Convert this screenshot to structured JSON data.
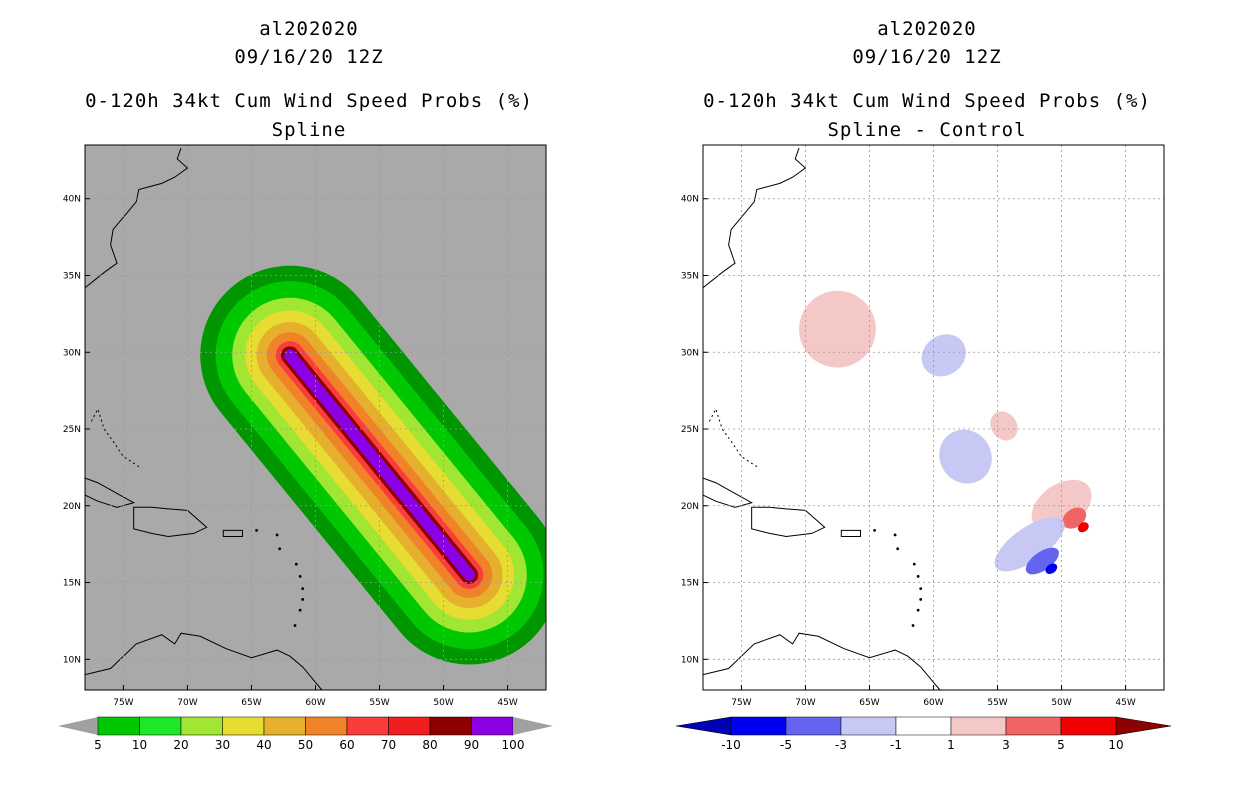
{
  "panels": [
    {
      "storm_id": "al202020",
      "datetime": "09/16/20 12Z",
      "title": "0-120h 34kt Cum Wind Speed Probs (%)",
      "subtitle": "Spline"
    },
    {
      "storm_id": "al202020",
      "datetime": "09/16/20 12Z",
      "title": "0-120h 34kt Cum Wind Speed Probs (%)",
      "subtitle": "Spline - Control"
    }
  ],
  "colors": {
    "background": "#ffffff",
    "land_ocean_gray": "#a9a9a9",
    "grid": "#9a9a9a"
  },
  "chart_data": [
    {
      "type": "heatmap",
      "title": "0-120h 34kt Cum Wind Speed Probs (%)",
      "subtitle": "Spline",
      "x_axis": {
        "range": [
          -78,
          -42
        ],
        "ticks": [
          -75,
          -70,
          -65,
          -60,
          -55,
          -50,
          -45
        ],
        "tick_labels": [
          "75W",
          "70W",
          "65W",
          "60W",
          "55W",
          "50W",
          "45W"
        ]
      },
      "y_axis": {
        "range": [
          8,
          43.5
        ],
        "ticks": [
          10,
          15,
          20,
          25,
          30,
          35,
          40
        ],
        "tick_labels": [
          "10N",
          "15N",
          "20N",
          "25N",
          "30N",
          "35N",
          "40N"
        ]
      },
      "grid": true,
      "storm_track": {
        "start": [
          -48,
          15.5
        ],
        "end": [
          -62,
          29.8
        ]
      },
      "contour_levels": [
        5,
        10,
        20,
        30,
        40,
        50,
        60,
        70,
        80,
        90,
        100
      ],
      "colorbar": {
        "labels": [
          "5",
          "10",
          "20",
          "30",
          "40",
          "50",
          "60",
          "70",
          "80",
          "90",
          "100"
        ],
        "colors": [
          "#009600",
          "#00c800",
          "#1ee628",
          "#a0e632",
          "#e6dc32",
          "#e6af2d",
          "#f08228",
          "#fa3c3c",
          "#f01e1e",
          "#8c0000",
          "#8c00e6"
        ],
        "end_arrow_color": "#a0a0a0"
      },
      "bands": [
        {
          "level": 5,
          "color": "#009600",
          "half_width_deg": 7.0
        },
        {
          "level": 10,
          "color": "#00c800",
          "half_width_deg": 5.8
        },
        {
          "level": 20,
          "color": "#a0e632",
          "half_width_deg": 4.5
        },
        {
          "level": 30,
          "color": "#e6dc32",
          "half_width_deg": 3.5
        },
        {
          "level": 40,
          "color": "#e6af2d",
          "half_width_deg": 2.6
        },
        {
          "level": 60,
          "color": "#f08228",
          "half_width_deg": 1.8
        },
        {
          "level": 70,
          "color": "#fa3c3c",
          "half_width_deg": 1.1
        },
        {
          "level": 90,
          "color": "#8c0000",
          "half_width_deg": 0.7
        },
        {
          "level": 100,
          "color": "#8c00e6",
          "half_width_deg": 0.45
        }
      ]
    },
    {
      "type": "heatmap",
      "title": "0-120h 34kt Cum Wind Speed Probs (%)",
      "subtitle": "Spline - Control",
      "x_axis": {
        "range": [
          -78,
          -42
        ],
        "ticks": [
          -75,
          -70,
          -65,
          -60,
          -55,
          -50,
          -45
        ],
        "tick_labels": [
          "75W",
          "70W",
          "65W",
          "60W",
          "55W",
          "50W",
          "45W"
        ]
      },
      "y_axis": {
        "range": [
          8,
          43.5
        ],
        "ticks": [
          10,
          15,
          20,
          25,
          30,
          35,
          40
        ],
        "tick_labels": [
          "10N",
          "15N",
          "20N",
          "25N",
          "30N",
          "35N",
          "40N"
        ]
      },
      "grid": true,
      "colorbar": {
        "labels": [
          "-10",
          "-5",
          "-3",
          "-1",
          "1",
          "3",
          "5",
          "10"
        ],
        "colors": [
          "#0000b4",
          "#0000f0",
          "#6464f0",
          "#c8c8f5",
          "#ffffff",
          "#f5c8c8",
          "#f06464",
          "#f00000",
          "#8c0000"
        ]
      },
      "anomaly_blobs": [
        {
          "name": "positive-1-3",
          "lon": -67.5,
          "lat": 31.5,
          "rx_deg": 3.0,
          "ry_deg": 2.5,
          "color": "#f5c8c8"
        },
        {
          "name": "negative-1-3",
          "lon": -59.2,
          "lat": 29.8,
          "rx_deg": 1.8,
          "ry_deg": 1.3,
          "color": "#c8c8f5"
        },
        {
          "name": "positive-1-3",
          "lon": -54.5,
          "lat": 25.2,
          "rx_deg": 1.0,
          "ry_deg": 1.0,
          "color": "#f5c8c8"
        },
        {
          "name": "negative-1-3",
          "lon": -57.5,
          "lat": 23.2,
          "rx_deg": 2.0,
          "ry_deg": 1.8,
          "color": "#c8c8f5"
        },
        {
          "name": "positive-1-3",
          "lon": -50.0,
          "lat": 20.0,
          "rx_deg": 2.6,
          "ry_deg": 1.4,
          "color": "#f5c8c8"
        },
        {
          "name": "positive-3-5",
          "lon": -49.0,
          "lat": 19.2,
          "rx_deg": 1.0,
          "ry_deg": 0.6,
          "color": "#f06464"
        },
        {
          "name": "positive-5-10",
          "lon": -48.3,
          "lat": 18.6,
          "rx_deg": 0.45,
          "ry_deg": 0.3,
          "color": "#f00000"
        },
        {
          "name": "negative-1-3",
          "lon": -52.5,
          "lat": 17.5,
          "rx_deg": 3.2,
          "ry_deg": 1.1,
          "color": "#c8c8f5"
        },
        {
          "name": "negative-3-5",
          "lon": -51.5,
          "lat": 16.4,
          "rx_deg": 1.5,
          "ry_deg": 0.6,
          "color": "#6464f0"
        },
        {
          "name": "negative-5-10",
          "lon": -50.8,
          "lat": 15.9,
          "rx_deg": 0.5,
          "ry_deg": 0.3,
          "color": "#0000f0"
        }
      ]
    }
  ]
}
